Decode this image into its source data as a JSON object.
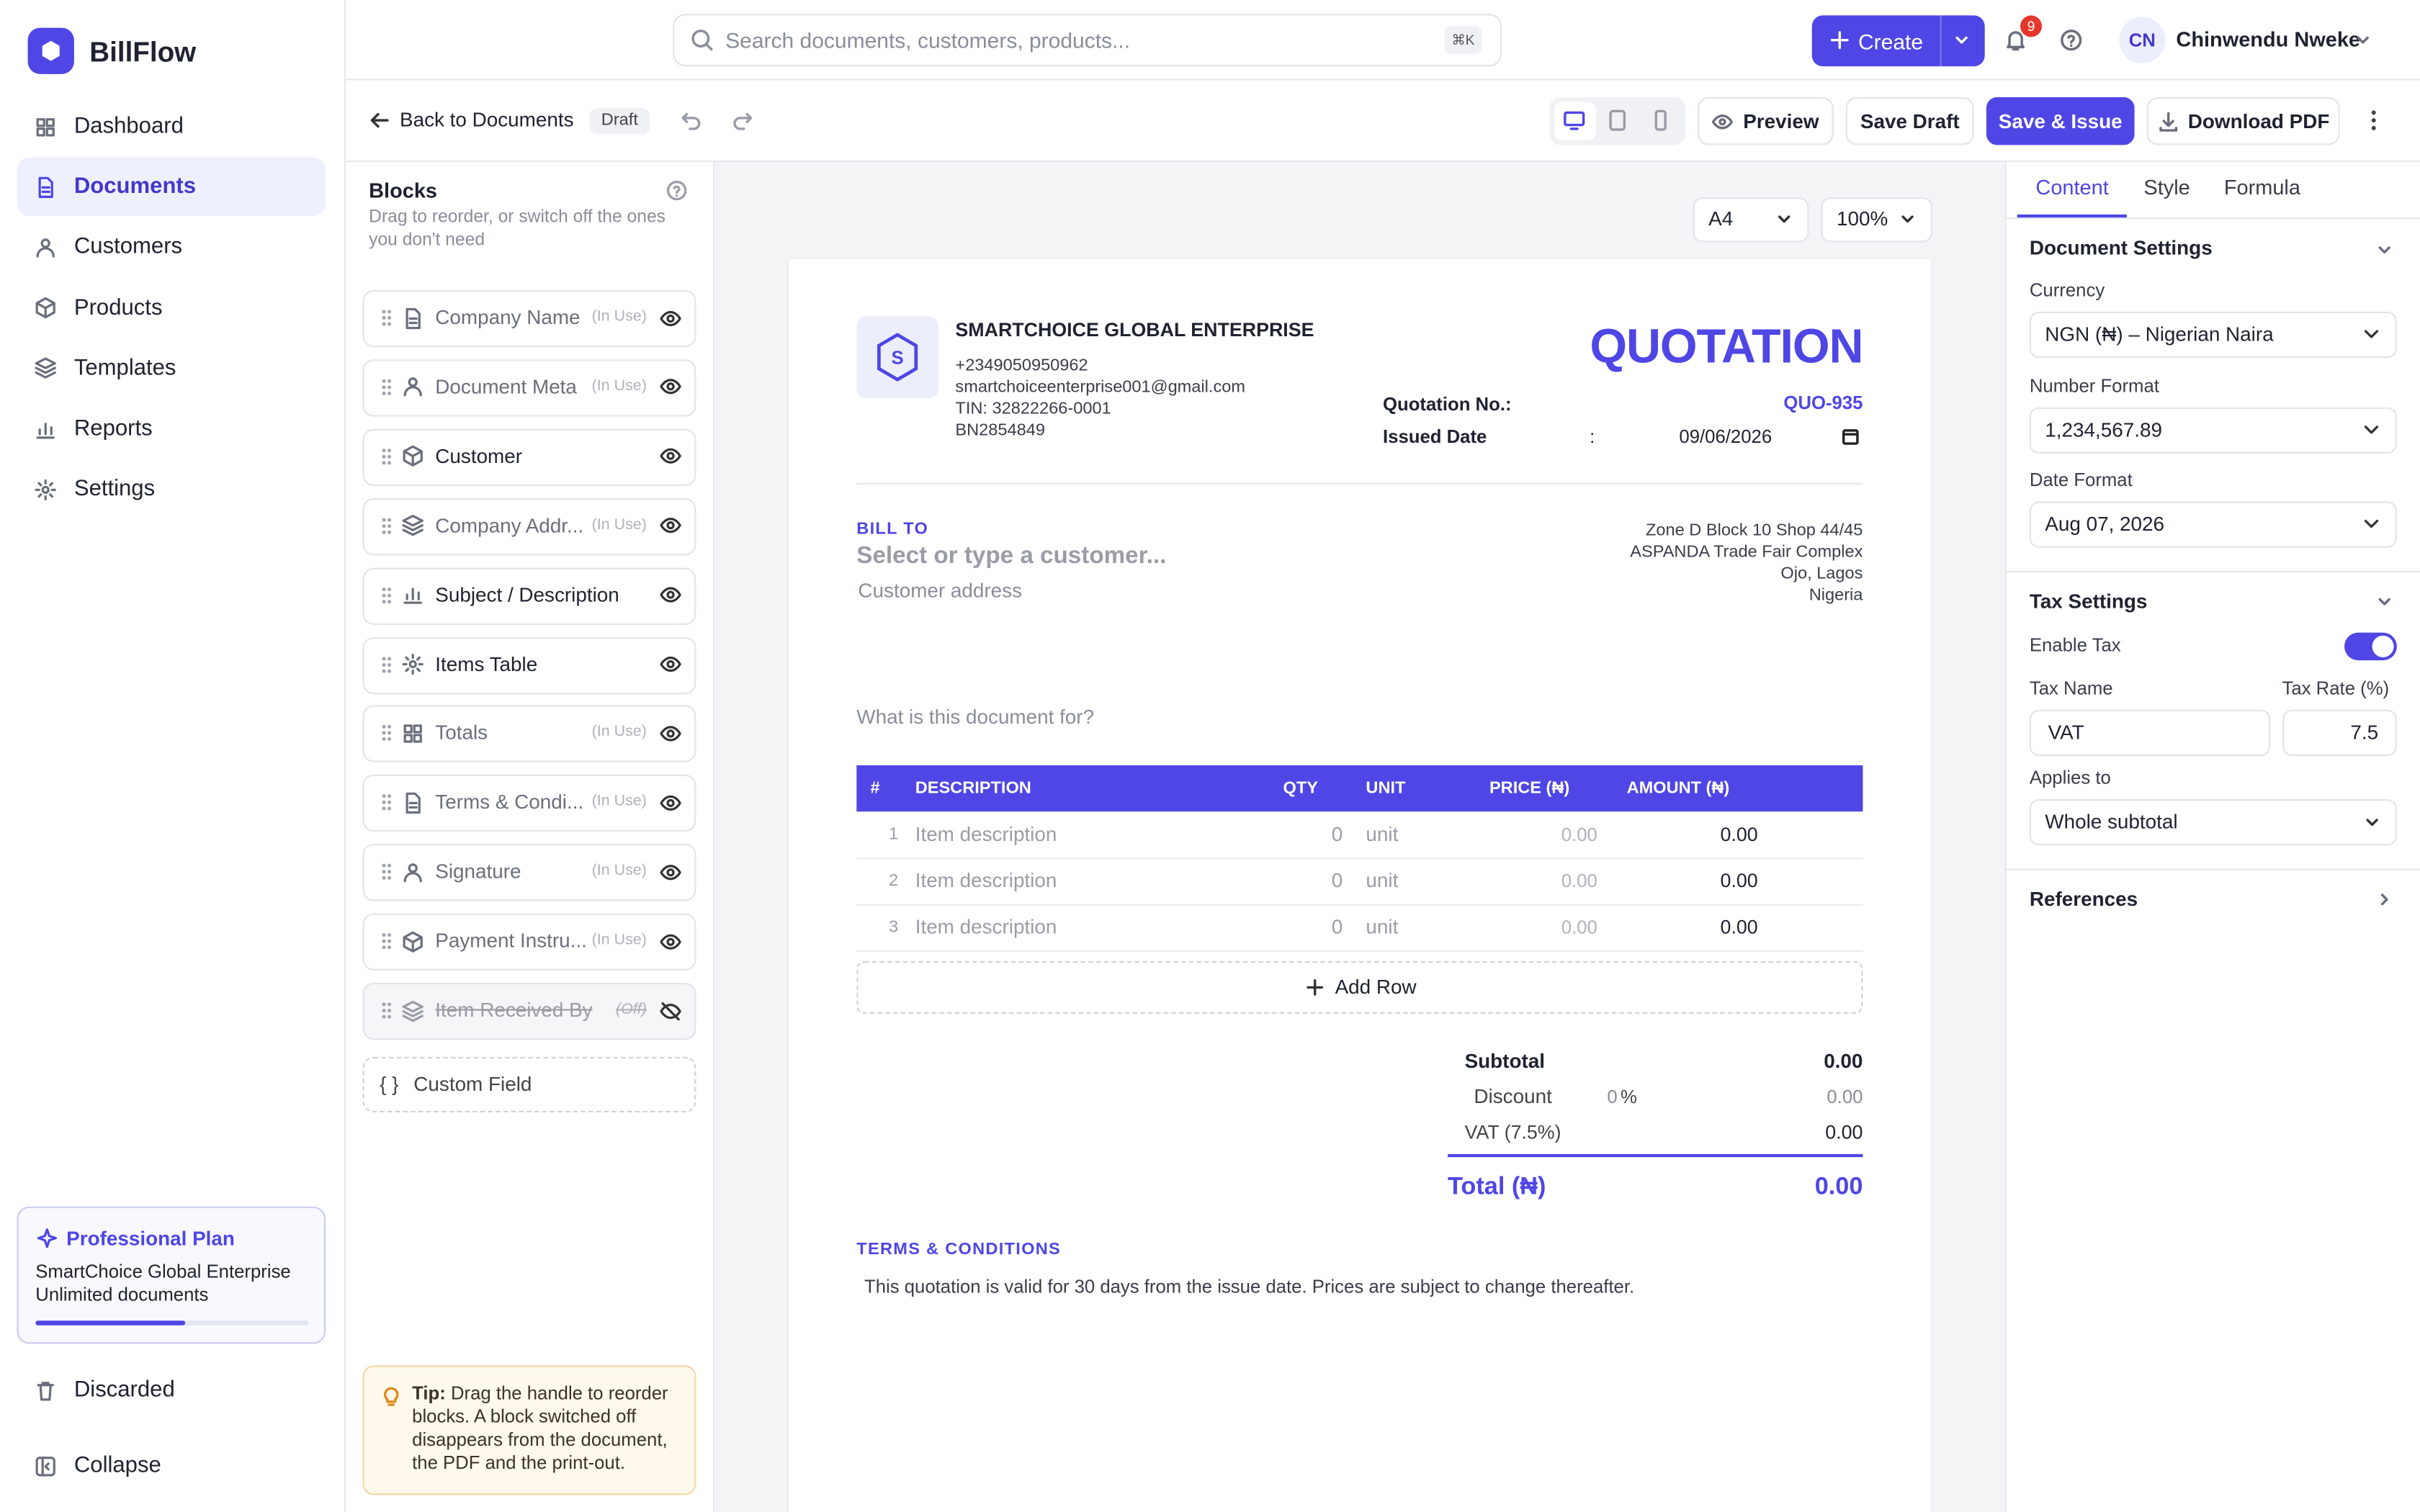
{
  "sidebar": {
    "brand": "BillFlow",
    "nav": [
      "Dashboard",
      "Documents",
      "Customers",
      "Products",
      "Templates",
      "Reports",
      "Settings"
    ],
    "plan": {
      "title": "Professional Plan",
      "lines": [
        "SmartChoice Global Enterprise",
        "Unlimited documents"
      ]
    },
    "footer": [
      "Discarded",
      "Collapse"
    ]
  },
  "topbar": {
    "search_placeholder": "Search documents, customers, products...",
    "shortcut": "⌘K",
    "create": "Create",
    "notifications": 9,
    "user_initials": "CN",
    "user_name": "Chinwendu Nweke"
  },
  "toolbar": {
    "back": "Back to Documents",
    "status": "Draft",
    "preview": "Preview",
    "save_draft": "Save Draft",
    "save_issue": "Save & Issue",
    "download": "Download PDF"
  },
  "blocks": {
    "title": "Blocks",
    "subtitle": "Drag to reorder, or switch off the ones you don't need",
    "items": [
      {
        "label": "Company Name",
        "status": "(In Use)",
        "visible": true
      },
      {
        "label": "Document Meta",
        "status": "(In Use)",
        "visible": true
      },
      {
        "label": "Customer",
        "visible": true
      },
      {
        "label": "Company Addr...",
        "status": "(In Use)",
        "visible": true
      },
      {
        "label": "Subject / Description",
        "visible": true
      },
      {
        "label": "Items Table",
        "visible": true
      },
      {
        "label": "Totals",
        "status": "(In Use)",
        "visible": true
      },
      {
        "label": "Terms & Condi...",
        "status": "(In Use)",
        "visible": true
      },
      {
        "label": "Signature",
        "status": "(In Use)",
        "visible": true
      },
      {
        "label": "Payment Instru...",
        "status": "(In Use)",
        "visible": true
      },
      {
        "label": "Item Received By",
        "status": "(Off)",
        "visible": false
      }
    ],
    "custom": "Custom Field",
    "custom_icon": "{ }",
    "tip_label": "Tip:",
    "tip": "Drag the handle to reorder blocks. A block switched off disappears from the document, the PDF and the print-out."
  },
  "canvas": {
    "page_size": "A4",
    "zoom": "100%"
  },
  "document": {
    "logo_letter": "S",
    "company": {
      "name": "SMARTCHOICE GLOBAL ENTERPRISE",
      "lines": [
        "+2349050950962",
        "smartchoiceenterprise001@gmail.com",
        "TIN: 32822266-0001",
        "BN2854849"
      ]
    },
    "title": "QUOTATION",
    "meta": {
      "number_label": "Quotation No.:",
      "number": "QUO-935",
      "date_label": "Issued Date",
      "date_separator": ":",
      "date": "09/06/2026"
    },
    "bill_to": {
      "label": "BILL TO",
      "placeholder": "Select or type a customer...",
      "address_placeholder": "Customer address"
    },
    "company_address": [
      "Zone D Block 10 Shop 44/45",
      "ASPANDA Trade Fair Complex",
      "Ojo, Lagos",
      "Nigeria"
    ],
    "subject_placeholder": "What is this document for?",
    "table": {
      "headers": [
        "#",
        "DESCRIPTION",
        "QTY",
        "UNIT",
        "PRICE (₦)",
        "AMOUNT (₦)"
      ],
      "rows": [
        [
          1,
          "Item description",
          0,
          "unit",
          "0.00",
          "0.00"
        ],
        [
          2,
          "Item description",
          0,
          "unit",
          "0.00",
          "0.00"
        ],
        [
          3,
          "Item description",
          0,
          "unit",
          "0.00",
          "0.00"
        ]
      ],
      "add_row": "Add Row"
    },
    "totals": {
      "subtotal_label": "Subtotal",
      "subtotal": "0.00",
      "discount_label": "Discount",
      "discount_rate": 0,
      "discount_unit": "%",
      "discount": "0.00",
      "tax_label": "VAT (7.5%)",
      "tax": "0.00",
      "total_label": "Total (₦)",
      "total": "0.00"
    },
    "terms": {
      "title": "TERMS & CONDITIONS",
      "text": "This quotation is valid for 30 days from the issue date. Prices are subject to change thereafter."
    }
  },
  "settings": {
    "tabs": [
      "Content",
      "Style",
      "Formula"
    ],
    "document_settings": {
      "title": "Document Settings",
      "fields": [
        {
          "label": "Currency",
          "value": "NGN (₦) – Nigerian Naira"
        },
        {
          "label": "Number Format",
          "value": "1,234,567.89"
        },
        {
          "label": "Date Format",
          "value": "Aug 07, 2026"
        }
      ]
    },
    "tax_settings": {
      "title": "Tax Settings",
      "enable_label": "Enable Tax",
      "enabled": true,
      "name_label": "Tax Name",
      "name": "VAT",
      "rate_label": "Tax Rate (%)",
      "rate": 7.5,
      "applies_label": "Applies to",
      "applies": "Whole subtotal"
    },
    "references": "References"
  }
}
